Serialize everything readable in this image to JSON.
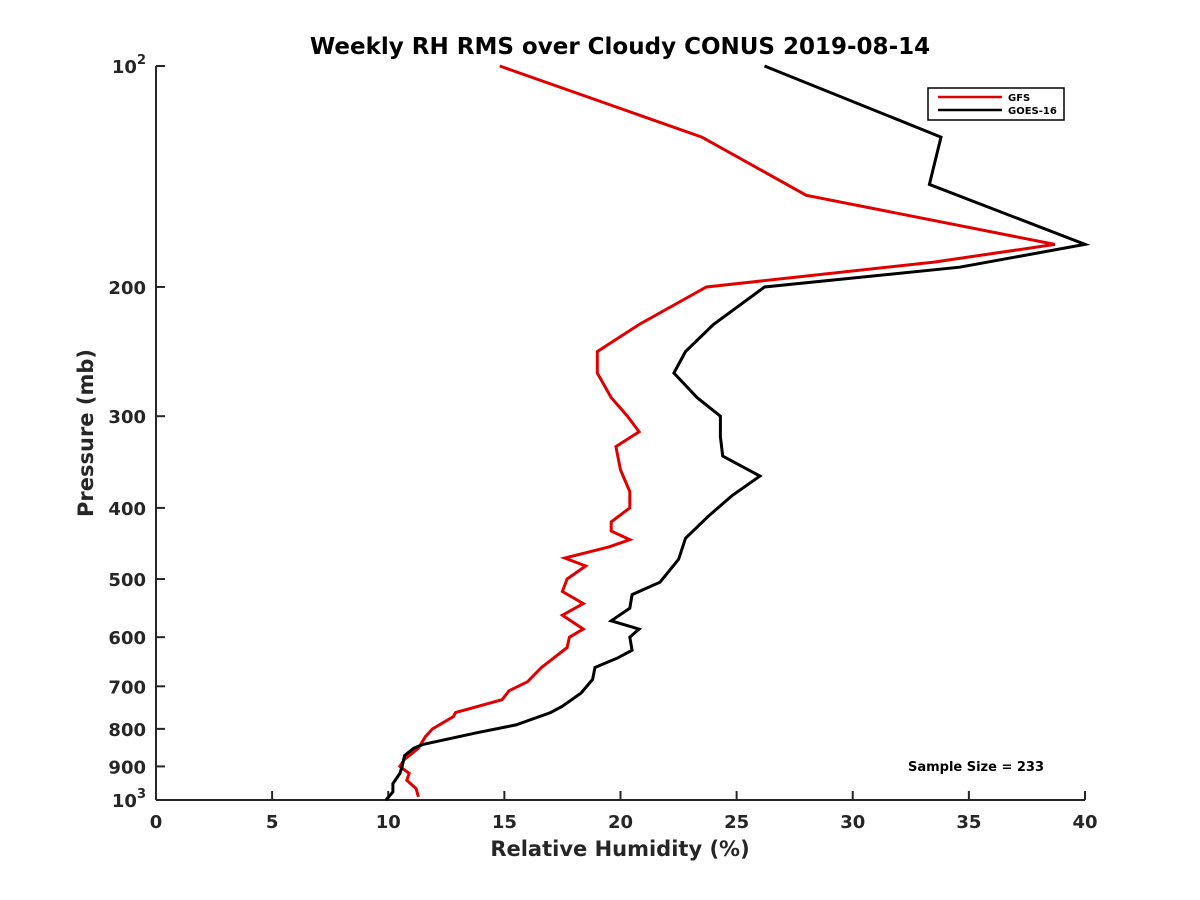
{
  "chart_data": {
    "type": "line",
    "title": "Weekly RH RMS over Cloudy CONUS 2019-08-14",
    "xlabel": "Relative Humidity (%)",
    "ylabel": "Pressure (mb)",
    "xlim": [
      0,
      40
    ],
    "ylim": [
      100,
      1000
    ],
    "y_scale": "log",
    "y_reversed": true,
    "x_ticks": [
      0,
      5,
      10,
      15,
      20,
      25,
      30,
      35,
      40
    ],
    "x_tick_labels": [
      "0",
      "5",
      "10",
      "15",
      "20",
      "25",
      "30",
      "35",
      "40"
    ],
    "y_ticks": [
      100,
      200,
      300,
      400,
      500,
      600,
      700,
      800,
      900,
      1000
    ],
    "y_tick_labels": [
      {
        "base": "10",
        "sup": "2"
      },
      {
        "base": "200"
      },
      {
        "base": "300"
      },
      {
        "base": "400"
      },
      {
        "base": "500"
      },
      {
        "base": "600"
      },
      {
        "base": "700"
      },
      {
        "base": "800"
      },
      {
        "base": "900"
      },
      {
        "base": "10",
        "sup": "3"
      }
    ],
    "grid": false,
    "legend_position": "top-right",
    "annotation": "Sample Size = 233",
    "series": [
      {
        "name": "GFS",
        "color": "#e00000",
        "points": [
          [
            14.8,
            100
          ],
          [
            23.5,
            125
          ],
          [
            28.0,
            150
          ],
          [
            38.7,
            175
          ],
          [
            33.5,
            185
          ],
          [
            23.7,
            200
          ],
          [
            20.8,
            225
          ],
          [
            19.0,
            245
          ],
          [
            19.0,
            262
          ],
          [
            19.6,
            283
          ],
          [
            20.3,
            300
          ],
          [
            20.8,
            315
          ],
          [
            19.8,
            330
          ],
          [
            20.0,
            355
          ],
          [
            20.4,
            380
          ],
          [
            20.4,
            400
          ],
          [
            19.6,
            418
          ],
          [
            19.6,
            430
          ],
          [
            20.4,
            442
          ],
          [
            19.5,
            452
          ],
          [
            17.6,
            468
          ],
          [
            18.5,
            480
          ],
          [
            17.7,
            500
          ],
          [
            17.5,
            520
          ],
          [
            18.4,
            540
          ],
          [
            17.5,
            560
          ],
          [
            18.4,
            585
          ],
          [
            17.8,
            600
          ],
          [
            17.7,
            620
          ],
          [
            16.6,
            660
          ],
          [
            16.0,
            690
          ],
          [
            15.2,
            710
          ],
          [
            14.9,
            730
          ],
          [
            12.9,
            760
          ],
          [
            12.8,
            770
          ],
          [
            11.9,
            800
          ],
          [
            11.6,
            820
          ],
          [
            11.3,
            850
          ],
          [
            10.7,
            880
          ],
          [
            10.5,
            900
          ],
          [
            10.9,
            920
          ],
          [
            10.8,
            940
          ],
          [
            11.2,
            965
          ],
          [
            11.3,
            990
          ]
        ]
      },
      {
        "name": "GOES-16",
        "color": "#000000",
        "points": [
          [
            26.2,
            100
          ],
          [
            33.8,
            125
          ],
          [
            33.3,
            145
          ],
          [
            40.0,
            175
          ],
          [
            34.6,
            188
          ],
          [
            26.2,
            200
          ],
          [
            24.0,
            225
          ],
          [
            22.8,
            245
          ],
          [
            22.3,
            262
          ],
          [
            23.3,
            283
          ],
          [
            24.3,
            300
          ],
          [
            24.3,
            320
          ],
          [
            24.4,
            340
          ],
          [
            26.0,
            362
          ],
          [
            24.8,
            385
          ],
          [
            23.8,
            410
          ],
          [
            22.8,
            440
          ],
          [
            22.5,
            470
          ],
          [
            21.7,
            505
          ],
          [
            20.5,
            525
          ],
          [
            20.4,
            548
          ],
          [
            19.6,
            570
          ],
          [
            20.8,
            585
          ],
          [
            20.4,
            600
          ],
          [
            20.5,
            625
          ],
          [
            19.9,
            640
          ],
          [
            18.9,
            660
          ],
          [
            18.8,
            685
          ],
          [
            18.3,
            715
          ],
          [
            17.5,
            745
          ],
          [
            17.0,
            760
          ],
          [
            15.5,
            790
          ],
          [
            13.8,
            810
          ],
          [
            11.5,
            840
          ],
          [
            11.1,
            850
          ],
          [
            10.7,
            870
          ],
          [
            10.6,
            900
          ],
          [
            10.5,
            920
          ],
          [
            10.2,
            950
          ],
          [
            10.2,
            975
          ],
          [
            9.9,
            1000
          ]
        ]
      }
    ]
  }
}
